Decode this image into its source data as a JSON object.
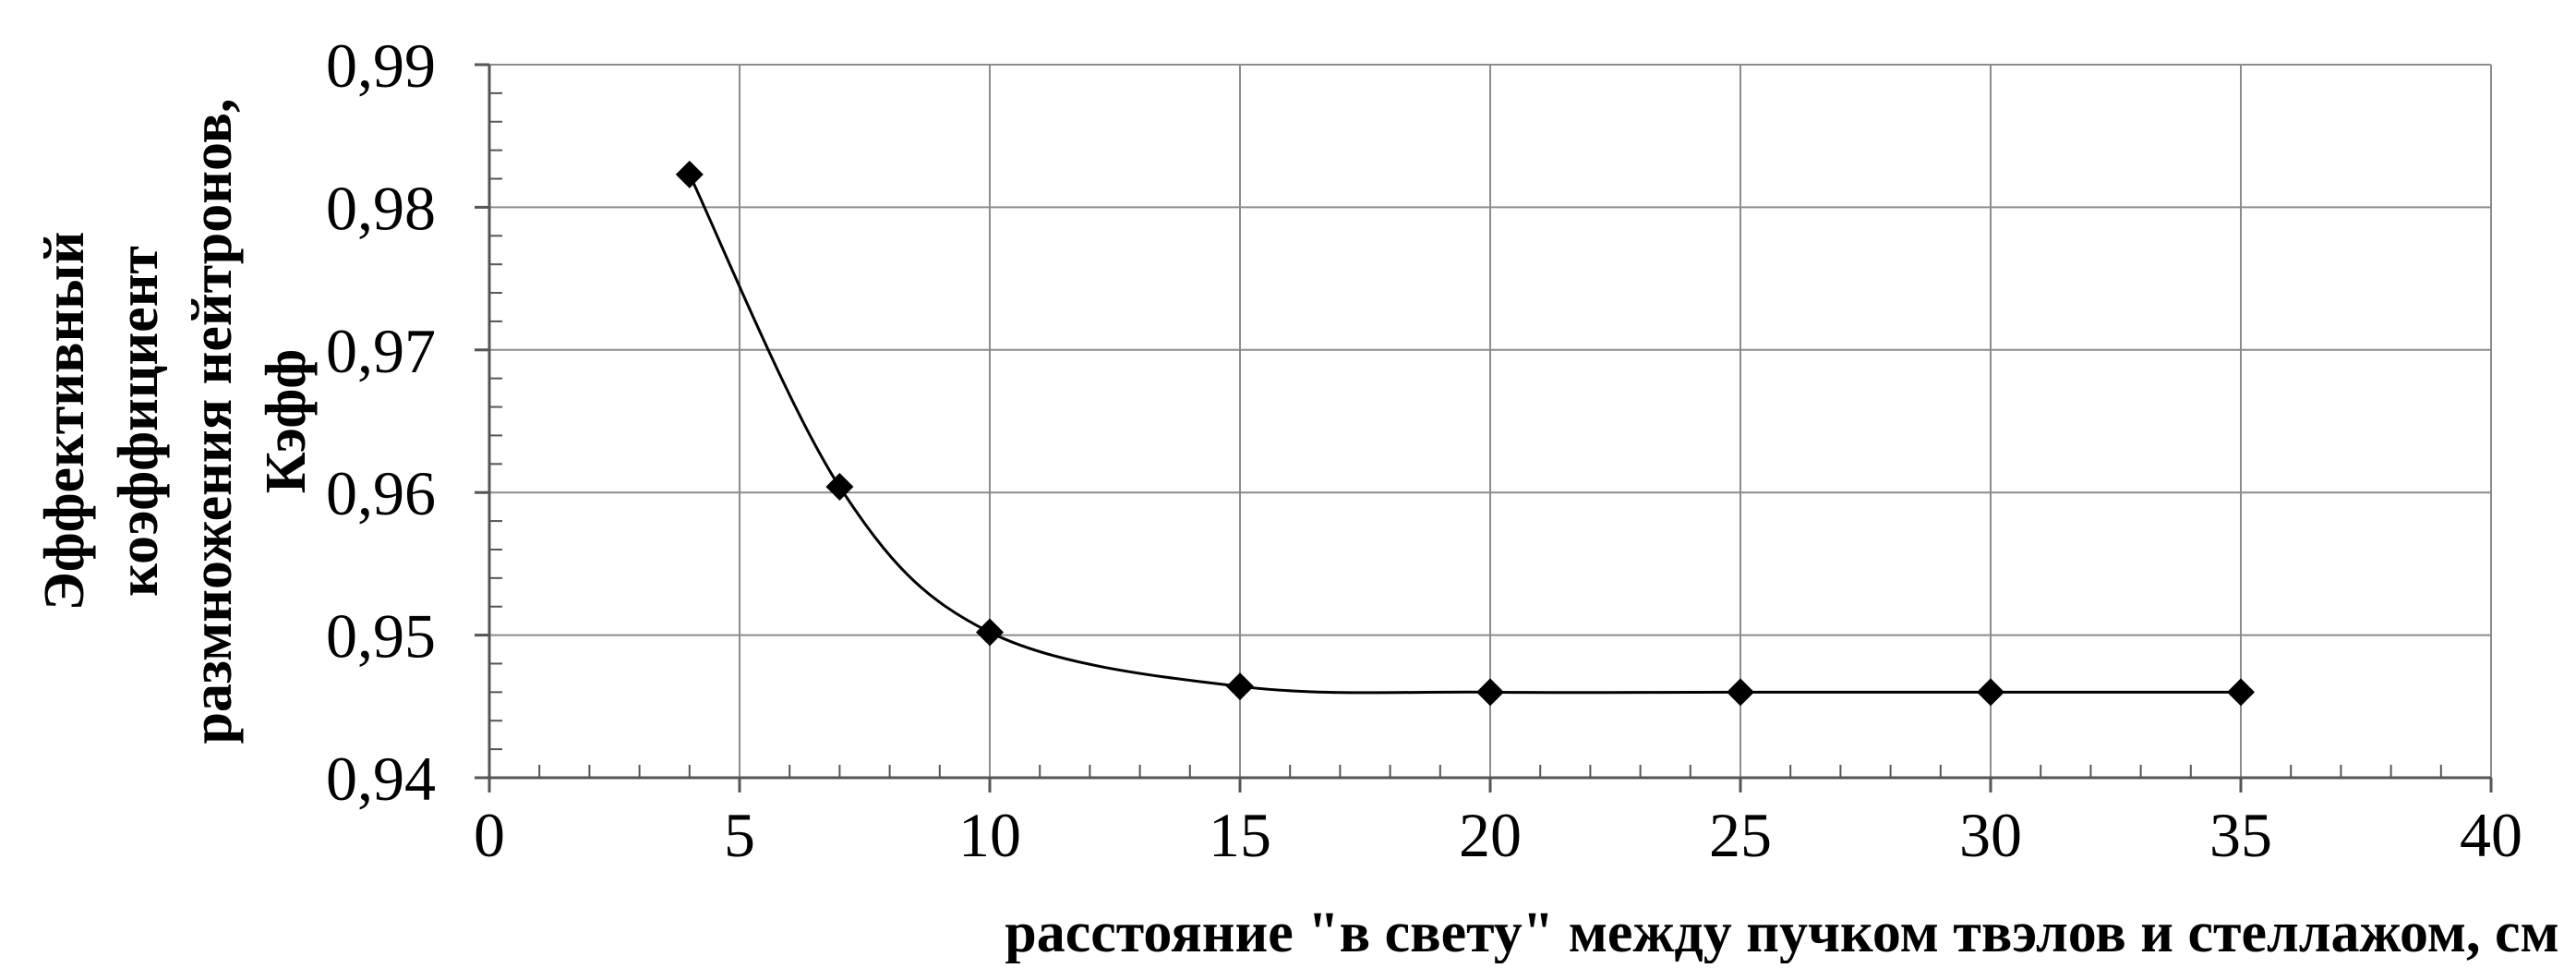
{
  "chart_data": {
    "type": "scatter",
    "title": "",
    "xlabel": "расстояние \"в свету\" между пучком твэлов и стеллажом, см",
    "ylabel_lines": [
      "Эффективный",
      "коэффициент",
      "размножения нейтронов,",
      "Кэфф"
    ],
    "xlim": [
      0,
      40
    ],
    "ylim": [
      0.94,
      0.99
    ],
    "x_ticks": [
      0,
      5,
      10,
      15,
      20,
      25,
      30,
      35,
      40
    ],
    "x_tick_labels": [
      "0",
      "5",
      "10",
      "15",
      "20",
      "25",
      "30",
      "35",
      "40"
    ],
    "y_ticks": [
      0.94,
      0.95,
      0.96,
      0.97,
      0.98,
      0.99
    ],
    "y_tick_labels": [
      "0,94",
      "0,95",
      "0,96",
      "0,97",
      "0,98",
      "0,99"
    ],
    "grid": true,
    "smooth_line": true,
    "marker": "diamond",
    "series": [
      {
        "x": [
          4,
          7,
          10,
          15,
          20,
          25,
          30,
          35
        ],
        "y": [
          0.9823,
          0.9604,
          0.9502,
          0.9464,
          0.946,
          0.946,
          0.946,
          0.946
        ]
      }
    ],
    "colors": {
      "line": "#000000",
      "marker": "#000000",
      "grid": "#8c8c8c",
      "axis": "#555555"
    }
  }
}
